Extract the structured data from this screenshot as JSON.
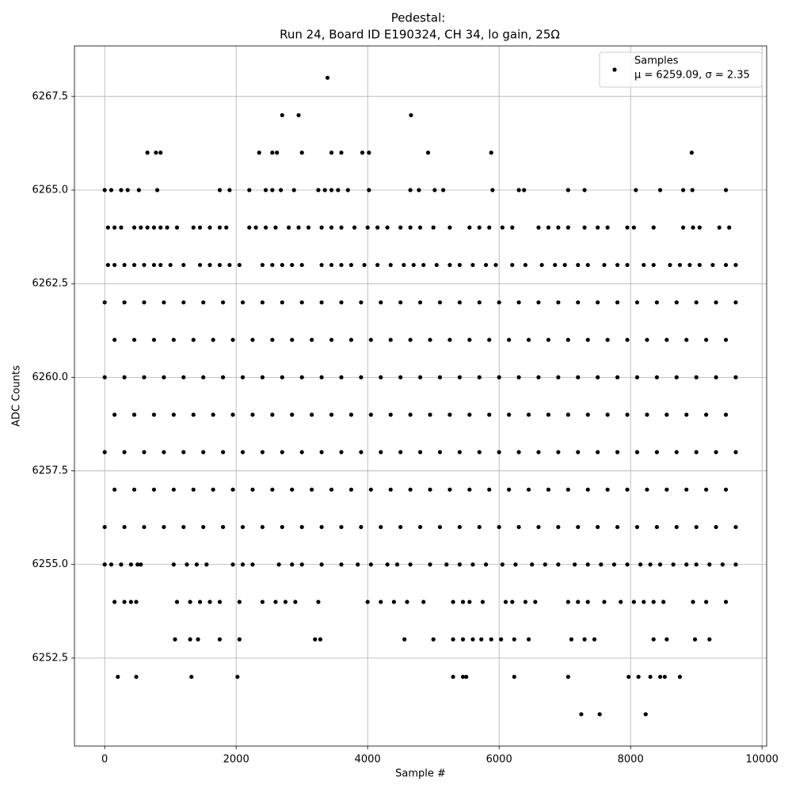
{
  "chart_data": {
    "type": "scatter",
    "title": "Pedestal:",
    "subtitle": "Run 24, Board ID E190324, CH 34, lo gain, 25Ω",
    "xlabel": "Sample #",
    "ylabel": "ADC Counts",
    "xlim": [
      -460,
      10070
    ],
    "ylim": [
      6250.15,
      6268.85
    ],
    "xticks": [
      0,
      2000,
      4000,
      6000,
      8000,
      10000
    ],
    "yticks": [
      6252.5,
      {
        "value": 6255,
        "label": "6255.0"
      },
      6257.5,
      {
        "value": 6260,
        "label": "6260.0"
      },
      6262.5,
      {
        "value": 6265,
        "label": "6265.0"
      },
      6267.5
    ],
    "grid": true,
    "legend": "upper right",
    "series": [
      {
        "name": "Samples",
        "legend_note": "μ = 6259.09, σ = 2.35",
        "color": "#000000",
        "x": [
          0,
          300,
          600,
          900,
          1200,
          1500,
          1800,
          2100,
          2400,
          2700,
          3000,
          3300,
          3600,
          3900,
          4200,
          4500,
          4800,
          5100,
          5400,
          5700,
          6000,
          6300,
          6600,
          6900,
          7200,
          7500,
          7800,
          8100,
          8400,
          8700,
          9000,
          9300,
          9600,
          150,
          450,
          750,
          1050,
          1350,
          1650,
          1950,
          2250,
          2550,
          2850,
          3150,
          3450,
          3750,
          4050,
          4350,
          4650,
          4950,
          5250,
          5550,
          5850,
          6150,
          6450,
          6750,
          7050,
          7350,
          7650,
          7950,
          8250,
          8550,
          8850,
          9150,
          9450,
          0,
          300,
          600,
          900,
          1200,
          1500,
          1800,
          2100,
          2400,
          2700,
          3000,
          3300,
          3600,
          3900,
          4200,
          4500,
          4800,
          5100,
          5400,
          5700,
          6000,
          6300,
          6600,
          6900,
          7200,
          7500,
          7800,
          8100,
          8400,
          8700,
          9000,
          9300,
          9600,
          150,
          450,
          750,
          1050,
          1350,
          1650,
          1950,
          2250,
          2550,
          2850,
          3150,
          3450,
          3750,
          4050,
          4350,
          4650,
          4950,
          5250,
          5550,
          5850,
          6150,
          6450,
          6750,
          7050,
          7350,
          7650,
          7950,
          8250,
          8550,
          8850,
          9150,
          9450,
          0,
          300,
          600,
          900,
          1200,
          1500,
          1800,
          2100,
          2400,
          2700,
          3000,
          3300,
          3600,
          3900,
          4200,
          4500,
          4800,
          5100,
          5400,
          5700,
          6000,
          6300,
          6600,
          6900,
          7200,
          7500,
          7800,
          8100,
          8400,
          8700,
          9000,
          9300,
          9600,
          150,
          450,
          750,
          1050,
          1350,
          1650,
          1950,
          2250,
          2550,
          2850,
          3150,
          3450,
          3750,
          4050,
          4350,
          4650,
          4950,
          5250,
          5550,
          5850,
          6150,
          6450,
          6750,
          7050,
          7350,
          7650,
          7950,
          8250,
          8550,
          8850,
          9150,
          9450,
          0,
          300,
          600,
          900,
          1200,
          1500,
          1800,
          2100,
          2400,
          2700,
          3000,
          3300,
          3600,
          3900,
          4200,
          4500,
          4800,
          5100,
          5400,
          5700,
          6000,
          6300,
          6600,
          6900,
          7200,
          7500,
          7800,
          8100,
          8400,
          8700,
          9000,
          9300,
          9600,
          3390,
          2700,
          2950,
          4660,
          650,
          780,
          850,
          2350,
          2550,
          2620,
          3000,
          3450,
          3600,
          3920,
          4020,
          4920,
          5880,
          8930,
          0,
          100,
          250,
          350,
          520,
          800,
          1750,
          1900,
          2200,
          2450,
          2550,
          2680,
          2880,
          3250,
          3350,
          3450,
          3550,
          3700,
          4020,
          4650,
          4780,
          5020,
          5150,
          5900,
          6300,
          6380,
          7050,
          7300,
          8080,
          8450,
          8800,
          8940,
          9450,
          50,
          150,
          250,
          450,
          550,
          650,
          750,
          850,
          950,
          1100,
          1350,
          1450,
          1600,
          1750,
          1850,
          2200,
          2300,
          2450,
          2600,
          2800,
          2950,
          3100,
          3300,
          3450,
          3600,
          3800,
          4000,
          4150,
          4300,
          4500,
          4650,
          4800,
          5000,
          5250,
          5550,
          5700,
          5850,
          6050,
          6200,
          6600,
          6750,
          6900,
          7050,
          7300,
          7500,
          7650,
          7950,
          8050,
          8350,
          8800,
          8950,
          9050,
          9350,
          9500,
          50,
          150,
          300,
          450,
          600,
          750,
          850,
          1000,
          1200,
          1450,
          1600,
          1750,
          1900,
          2050,
          2400,
          2550,
          2700,
          2850,
          3000,
          3300,
          3450,
          3600,
          3750,
          3950,
          4150,
          4350,
          4550,
          4700,
          4850,
          5050,
          5250,
          5400,
          5600,
          5800,
          5950,
          6200,
          6400,
          6650,
          6850,
          7000,
          7200,
          7350,
          7600,
          7800,
          7950,
          8200,
          8350,
          8600,
          8750,
          8900,
          9050,
          9250,
          9450,
          9600,
          0,
          100,
          250,
          400,
          500,
          550,
          1050,
          1250,
          1400,
          1550,
          1950,
          2100,
          2250,
          2650,
          2850,
          3000,
          3300,
          3600,
          3850,
          4050,
          4300,
          4450,
          4650,
          4950,
          5200,
          5400,
          5600,
          5800,
          6050,
          6250,
          6500,
          6700,
          6900,
          7150,
          7350,
          7550,
          7750,
          7950,
          8150,
          8300,
          8450,
          8650,
          8850,
          9000,
          9200,
          9400,
          9600,
          150,
          300,
          400,
          480,
          1100,
          1300,
          1450,
          1600,
          1750,
          2050,
          2400,
          2600,
          2750,
          2900,
          3250,
          4000,
          4200,
          4400,
          4600,
          4850,
          5300,
          5450,
          5550,
          5750,
          6100,
          6200,
          6400,
          6550,
          7050,
          7200,
          7350,
          7600,
          7850,
          8050,
          8200,
          8350,
          8500,
          8950,
          9150,
          9450,
          1070,
          1300,
          1420,
          1750,
          2050,
          3200,
          3280,
          4560,
          5000,
          5300,
          5450,
          5600,
          5730,
          5880,
          6030,
          6230,
          6450,
          7100,
          7300,
          7450,
          8350,
          8550,
          8980,
          9200,
          200,
          480,
          1320,
          2020,
          5300,
          5450,
          5500,
          6230,
          7050,
          7970,
          8120,
          8300,
          8450,
          8520,
          8750,
          7250,
          7530,
          8230
        ],
        "values": [
          6262,
          6262,
          6262,
          6262,
          6262,
          6262,
          6262,
          6262,
          6262,
          6262,
          6262,
          6262,
          6262,
          6262,
          6262,
          6262,
          6262,
          6262,
          6262,
          6262,
          6262,
          6262,
          6262,
          6262,
          6262,
          6262,
          6262,
          6262,
          6262,
          6262,
          6262,
          6262,
          6262,
          6261,
          6261,
          6261,
          6261,
          6261,
          6261,
          6261,
          6261,
          6261,
          6261,
          6261,
          6261,
          6261,
          6261,
          6261,
          6261,
          6261,
          6261,
          6261,
          6261,
          6261,
          6261,
          6261,
          6261,
          6261,
          6261,
          6261,
          6261,
          6261,
          6261,
          6261,
          6261,
          6260,
          6260,
          6260,
          6260,
          6260,
          6260,
          6260,
          6260,
          6260,
          6260,
          6260,
          6260,
          6260,
          6260,
          6260,
          6260,
          6260,
          6260,
          6260,
          6260,
          6260,
          6260,
          6260,
          6260,
          6260,
          6260,
          6260,
          6260,
          6260,
          6260,
          6260,
          6260,
          6260,
          6259,
          6259,
          6259,
          6259,
          6259,
          6259,
          6259,
          6259,
          6259,
          6259,
          6259,
          6259,
          6259,
          6259,
          6259,
          6259,
          6259,
          6259,
          6259,
          6259,
          6259,
          6259,
          6259,
          6259,
          6259,
          6259,
          6259,
          6259,
          6259,
          6259,
          6259,
          6259,
          6258,
          6258,
          6258,
          6258,
          6258,
          6258,
          6258,
          6258,
          6258,
          6258,
          6258,
          6258,
          6258,
          6258,
          6258,
          6258,
          6258,
          6258,
          6258,
          6258,
          6258,
          6258,
          6258,
          6258,
          6258,
          6258,
          6258,
          6258,
          6258,
          6258,
          6258,
          6258,
          6258,
          6257,
          6257,
          6257,
          6257,
          6257,
          6257,
          6257,
          6257,
          6257,
          6257,
          6257,
          6257,
          6257,
          6257,
          6257,
          6257,
          6257,
          6257,
          6257,
          6257,
          6257,
          6257,
          6257,
          6257,
          6257,
          6257,
          6257,
          6257,
          6257,
          6257,
          6257,
          6257,
          6256,
          6256,
          6256,
          6256,
          6256,
          6256,
          6256,
          6256,
          6256,
          6256,
          6256,
          6256,
          6256,
          6256,
          6256,
          6256,
          6256,
          6256,
          6256,
          6256,
          6256,
          6256,
          6256,
          6256,
          6256,
          6256,
          6256,
          6256,
          6256,
          6256,
          6256,
          6256,
          6256,
          6268,
          6267,
          6267,
          6267,
          6266,
          6266,
          6266,
          6266,
          6266,
          6266,
          6266,
          6266,
          6266,
          6266,
          6266,
          6266,
          6266,
          6266,
          6265,
          6265,
          6265,
          6265,
          6265,
          6265,
          6265,
          6265,
          6265,
          6265,
          6265,
          6265,
          6265,
          6265,
          6265,
          6265,
          6265,
          6265,
          6265,
          6265,
          6265,
          6265,
          6265,
          6265,
          6265,
          6265,
          6265,
          6265,
          6265,
          6265,
          6265,
          6265,
          6265,
          6264,
          6264,
          6264,
          6264,
          6264,
          6264,
          6264,
          6264,
          6264,
          6264,
          6264,
          6264,
          6264,
          6264,
          6264,
          6264,
          6264,
          6264,
          6264,
          6264,
          6264,
          6264,
          6264,
          6264,
          6264,
          6264,
          6264,
          6264,
          6264,
          6264,
          6264,
          6264,
          6264,
          6264,
          6264,
          6264,
          6264,
          6264,
          6264,
          6264,
          6264,
          6264,
          6264,
          6264,
          6264,
          6264,
          6264,
          6264,
          6264,
          6264,
          6264,
          6264,
          6264,
          6264,
          6263,
          6263,
          6263,
          6263,
          6263,
          6263,
          6263,
          6263,
          6263,
          6263,
          6263,
          6263,
          6263,
          6263,
          6263,
          6263,
          6263,
          6263,
          6263,
          6263,
          6263,
          6263,
          6263,
          6263,
          6263,
          6263,
          6263,
          6263,
          6263,
          6263,
          6263,
          6263,
          6263,
          6263,
          6263,
          6263,
          6263,
          6263,
          6263,
          6263,
          6263,
          6263,
          6263,
          6263,
          6263,
          6263,
          6263,
          6263,
          6263,
          6263,
          6263,
          6263,
          6263,
          6263,
          6255,
          6255,
          6255,
          6255,
          6255,
          6255,
          6255,
          6255,
          6255,
          6255,
          6255,
          6255,
          6255,
          6255,
          6255,
          6255,
          6255,
          6255,
          6255,
          6255,
          6255,
          6255,
          6255,
          6255,
          6255,
          6255,
          6255,
          6255,
          6255,
          6255,
          6255,
          6255,
          6255,
          6255,
          6255,
          6255,
          6255,
          6255,
          6255,
          6255,
          6255,
          6255,
          6255,
          6255,
          6255,
          6255,
          6255,
          6254,
          6254,
          6254,
          6254,
          6254,
          6254,
          6254,
          6254,
          6254,
          6254,
          6254,
          6254,
          6254,
          6254,
          6254,
          6254,
          6254,
          6254,
          6254,
          6254,
          6254,
          6254,
          6254,
          6254,
          6254,
          6254,
          6254,
          6254,
          6254,
          6254,
          6254,
          6254,
          6254,
          6254,
          6254,
          6254,
          6254,
          6254,
          6254,
          6254,
          6253,
          6253,
          6253,
          6253,
          6253,
          6253,
          6253,
          6253,
          6253,
          6253,
          6253,
          6253,
          6253,
          6253,
          6253,
          6253,
          6253,
          6253,
          6253,
          6253,
          6253,
          6253,
          6253,
          6253,
          6252,
          6252,
          6252,
          6252,
          6252,
          6252,
          6252,
          6252,
          6252,
          6252,
          6252,
          6252,
          6252,
          6252,
          6252,
          6251,
          6251,
          6251
        ]
      }
    ]
  }
}
